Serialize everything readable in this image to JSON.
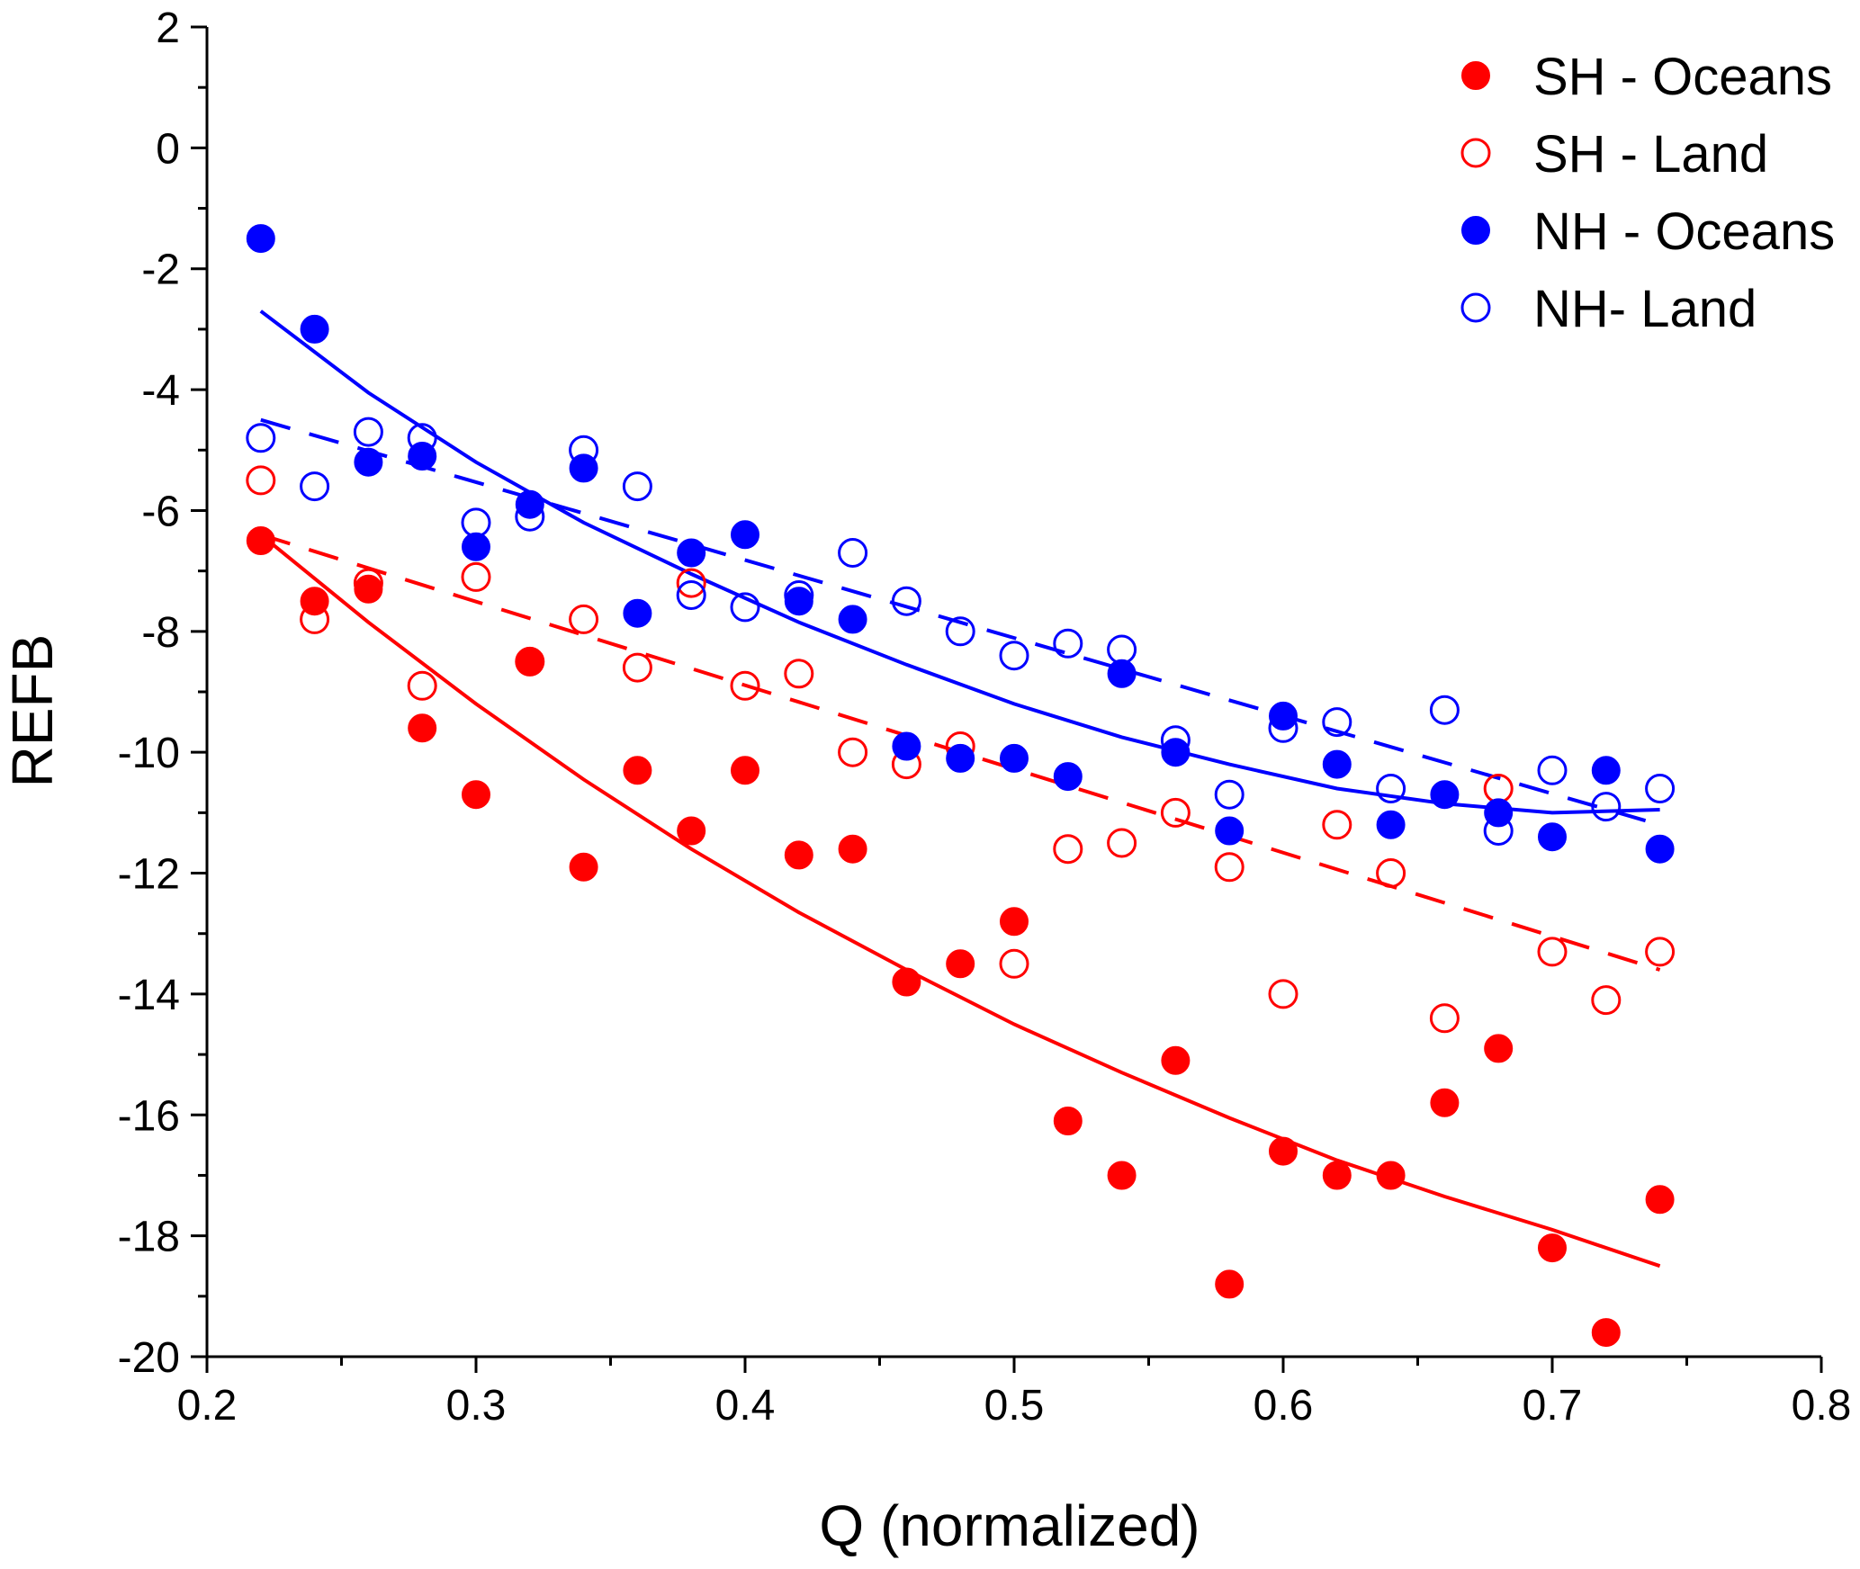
{
  "chart_data": {
    "type": "scatter",
    "xlabel": "Q (normalized)",
    "ylabel": "REFB",
    "xlim": [
      0.2,
      0.8
    ],
    "ylim": [
      -20,
      2
    ],
    "x_ticks": [
      0.2,
      0.3,
      0.4,
      0.5,
      0.6,
      0.7,
      0.8
    ],
    "x_tick_labels": [
      "0.2",
      "0.3",
      "0.4",
      "0.5",
      "0.6",
      "0.7",
      "0.8"
    ],
    "y_ticks": [
      2,
      0,
      -2,
      -4,
      -6,
      -8,
      -10,
      -12,
      -14,
      -16,
      -18,
      -20
    ],
    "y_tick_labels": [
      "2",
      "0",
      "-2",
      "-4",
      "-6",
      "-8",
      "-10",
      "-12",
      "-14",
      "-16",
      "-18",
      "-20"
    ],
    "grid": false,
    "legend_position": "top-right",
    "series": [
      {
        "name": "SH - Oceans",
        "color": "#ff0000",
        "marker": "filled-circle",
        "x": [
          0.22,
          0.24,
          0.26,
          0.28,
          0.3,
          0.32,
          0.34,
          0.36,
          0.38,
          0.4,
          0.42,
          0.44,
          0.46,
          0.48,
          0.5,
          0.52,
          0.54,
          0.56,
          0.58,
          0.6,
          0.62,
          0.64,
          0.66,
          0.68,
          0.7,
          0.72,
          0.74
        ],
        "y": [
          -6.5,
          -7.5,
          -7.3,
          -9.6,
          -10.7,
          -8.5,
          -11.9,
          -10.3,
          -11.3,
          -10.3,
          -11.7,
          -11.6,
          -13.8,
          -13.5,
          -12.8,
          -16.1,
          -17.0,
          -15.1,
          -18.8,
          -16.6,
          -17.0,
          -17.0,
          -15.8,
          -14.9,
          -18.2,
          -19.6,
          -17.4
        ]
      },
      {
        "name": "SH - Land",
        "color": "#ff0000",
        "marker": "open-circle",
        "x": [
          0.22,
          0.24,
          0.26,
          0.28,
          0.3,
          0.32,
          0.34,
          0.36,
          0.38,
          0.4,
          0.42,
          0.44,
          0.46,
          0.48,
          0.5,
          0.52,
          0.54,
          0.56,
          0.58,
          0.6,
          0.62,
          0.64,
          0.66,
          0.68,
          0.7,
          0.72,
          0.74
        ],
        "y": [
          -5.5,
          -7.8,
          -7.2,
          -8.9,
          -7.1,
          -8.5,
          -7.8,
          -8.6,
          -7.2,
          -8.9,
          -8.7,
          -10.0,
          -10.2,
          -9.9,
          -13.5,
          -11.6,
          -11.5,
          -11.0,
          -11.9,
          -14.0,
          -11.2,
          -12.0,
          -14.4,
          -10.6,
          -13.3,
          -14.1,
          -13.3
        ]
      },
      {
        "name": "NH - Oceans",
        "color": "#0000ff",
        "marker": "filled-circle",
        "x": [
          0.22,
          0.24,
          0.26,
          0.28,
          0.3,
          0.32,
          0.34,
          0.36,
          0.38,
          0.4,
          0.42,
          0.44,
          0.46,
          0.48,
          0.5,
          0.52,
          0.54,
          0.56,
          0.58,
          0.6,
          0.62,
          0.64,
          0.66,
          0.68,
          0.7,
          0.72,
          0.74
        ],
        "y": [
          -1.5,
          -3.0,
          -5.2,
          -5.1,
          -6.6,
          -5.9,
          -5.3,
          -7.7,
          -6.7,
          -6.4,
          -7.5,
          -7.8,
          -9.9,
          -10.1,
          -10.1,
          -10.4,
          -8.7,
          -10.0,
          -11.3,
          -9.4,
          -10.2,
          -11.2,
          -10.7,
          -11.0,
          -11.4,
          -10.3,
          -11.6
        ]
      },
      {
        "name": "NH- Land",
        "color": "#0000ff",
        "marker": "open-circle",
        "x": [
          0.22,
          0.24,
          0.26,
          0.28,
          0.3,
          0.32,
          0.34,
          0.36,
          0.38,
          0.4,
          0.42,
          0.44,
          0.46,
          0.48,
          0.5,
          0.52,
          0.54,
          0.56,
          0.58,
          0.6,
          0.62,
          0.64,
          0.66,
          0.68,
          0.7,
          0.72,
          0.74
        ],
        "y": [
          -4.8,
          -5.6,
          -4.7,
          -4.8,
          -6.2,
          -6.1,
          -5.0,
          -5.6,
          -7.4,
          -7.6,
          -7.4,
          -6.7,
          -7.5,
          -8.0,
          -8.4,
          -8.2,
          -8.3,
          -9.8,
          -10.7,
          -9.6,
          -9.5,
          -10.6,
          -9.3,
          -11.3,
          -10.3,
          -10.9,
          -10.6
        ]
      }
    ],
    "fits": [
      {
        "series": "SH - Oceans",
        "color": "#ff0000",
        "style": "solid",
        "x": [
          0.22,
          0.26,
          0.3,
          0.34,
          0.38,
          0.42,
          0.46,
          0.5,
          0.54,
          0.58,
          0.62,
          0.66,
          0.7,
          0.74
        ],
        "y": [
          -6.4,
          -7.85,
          -9.2,
          -10.45,
          -11.6,
          -12.65,
          -13.6,
          -14.5,
          -15.3,
          -16.05,
          -16.75,
          -17.35,
          -17.9,
          -18.5
        ]
      },
      {
        "series": "SH - Land",
        "color": "#ff0000",
        "style": "dashed",
        "x": [
          0.22,
          0.74
        ],
        "y": [
          -6.4,
          -13.6
        ]
      },
      {
        "series": "NH - Oceans",
        "color": "#0000ff",
        "style": "solid",
        "x": [
          0.22,
          0.26,
          0.3,
          0.34,
          0.38,
          0.42,
          0.46,
          0.5,
          0.54,
          0.58,
          0.62,
          0.66,
          0.7,
          0.74
        ],
        "y": [
          -2.7,
          -4.05,
          -5.2,
          -6.2,
          -7.05,
          -7.85,
          -8.55,
          -9.2,
          -9.75,
          -10.2,
          -10.6,
          -10.85,
          -11.0,
          -10.95
        ]
      },
      {
        "series": "NH- Land",
        "color": "#0000ff",
        "style": "dashed",
        "x": [
          0.22,
          0.74
        ],
        "y": [
          -4.5,
          -11.2
        ]
      }
    ]
  }
}
